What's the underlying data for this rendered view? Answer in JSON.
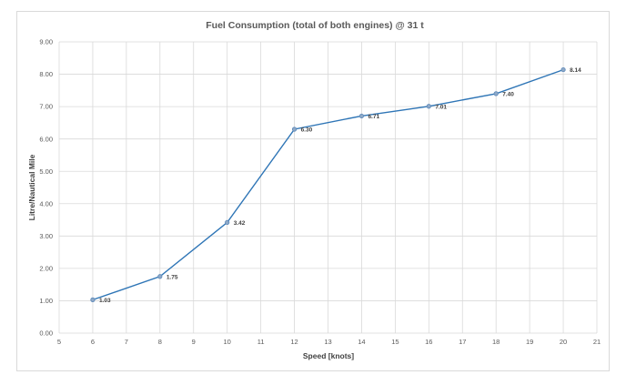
{
  "chart_data": {
    "type": "line",
    "title": "Fuel Consumption (total of both engines) @ 31 t",
    "xlabel": "Speed [knots]",
    "ylabel": "Litre/Nautical Mile",
    "xlim": [
      5,
      21
    ],
    "ylim": [
      0,
      9
    ],
    "x_ticks": [
      "5",
      "6",
      "7",
      "8",
      "9",
      "10",
      "11",
      "12",
      "13",
      "14",
      "15",
      "16",
      "17",
      "18",
      "19",
      "20",
      "21"
    ],
    "y_ticks": [
      "0.00",
      "1.00",
      "2.00",
      "3.00",
      "4.00",
      "5.00",
      "6.00",
      "7.00",
      "8.00",
      "9.00"
    ],
    "grid": true,
    "legend": "none",
    "series_color": "#2e75b6",
    "x": [
      6,
      8,
      10,
      12,
      14,
      16,
      18,
      20
    ],
    "values": [
      1.03,
      1.75,
      3.42,
      6.3,
      6.71,
      7.01,
      7.4,
      8.14
    ],
    "data_labels": [
      "1.03",
      "1.75",
      "3.42",
      "6.30",
      "6.71",
      "7.01",
      "7.40",
      "8.14"
    ]
  }
}
